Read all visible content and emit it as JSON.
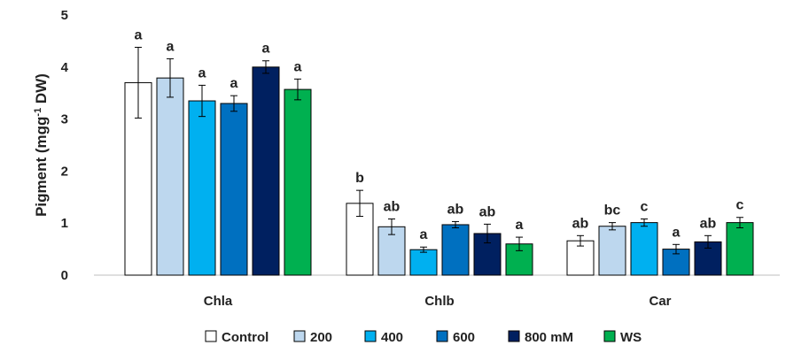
{
  "chart_data": {
    "type": "bar",
    "title": "",
    "xlabel": "",
    "ylabel": "Pigment (mgg",
    "ylabel_sup": "-1",
    "ylabel_suffix": " DW)",
    "categories": [
      "Chla",
      "Chlb",
      "Car"
    ],
    "ylim": [
      0,
      5
    ],
    "yticks": [
      "0",
      "1",
      "2",
      "3",
      "4",
      "5"
    ],
    "grid": false,
    "legend_position": "bottom",
    "series": [
      {
        "name": "Control",
        "color": "#ffffff",
        "values": [
          3.7,
          1.38,
          0.66
        ],
        "errors": [
          0.68,
          0.25,
          0.1
        ],
        "labels": [
          "a",
          "b",
          "ab"
        ]
      },
      {
        "name": "200",
        "color": "#bdd7ee",
        "values": [
          3.79,
          0.93,
          0.94
        ],
        "errors": [
          0.37,
          0.15,
          0.07
        ],
        "labels": [
          "a",
          "ab",
          "bc"
        ]
      },
      {
        "name": "400",
        "color": "#00b0f0",
        "values": [
          3.35,
          0.49,
          1.01
        ],
        "errors": [
          0.3,
          0.05,
          0.07
        ],
        "labels": [
          "a",
          "a",
          "c"
        ]
      },
      {
        "name": "600",
        "color": "#0070c0",
        "values": [
          3.3,
          0.97,
          0.5
        ],
        "errors": [
          0.15,
          0.06,
          0.09
        ],
        "labels": [
          "a",
          "ab",
          "a"
        ]
      },
      {
        "name": "800 mM",
        "color": "#002060",
        "values": [
          4.0,
          0.8,
          0.64
        ],
        "errors": [
          0.12,
          0.18,
          0.12
        ],
        "labels": [
          "a",
          "ab",
          "ab"
        ]
      },
      {
        "name": "WS",
        "color": "#00b050",
        "values": [
          3.57,
          0.6,
          1.01
        ],
        "errors": [
          0.2,
          0.13,
          0.1
        ],
        "labels": [
          "a",
          "a",
          "c"
        ]
      }
    ]
  }
}
